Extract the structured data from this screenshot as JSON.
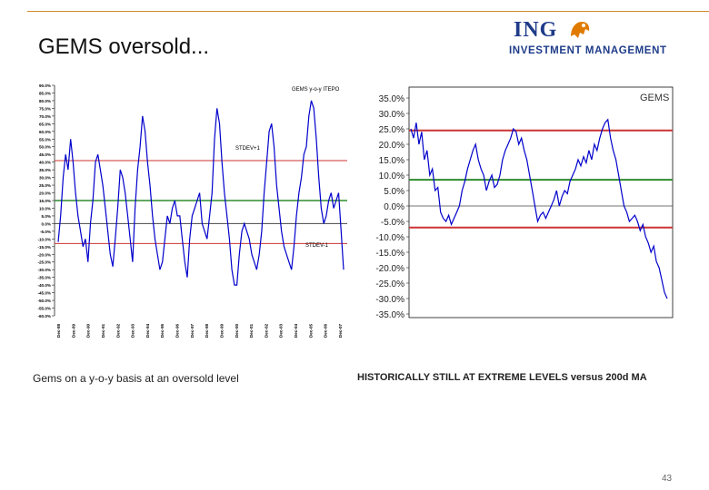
{
  "slide": {
    "title": "GEMS oversold...",
    "logo_main": "ING",
    "logo_sub": "INVESTMENT MANAGEMENT",
    "caption_left": "Gems on a y-o-y basis at an oversold level",
    "caption_right": "HISTORICALLY STILL AT EXTREME LEVELS versus 200d MA",
    "page_number": "43"
  },
  "colors": {
    "series": "#0000cc",
    "stdev": "#cc3333",
    "mean": "#2e8b2e",
    "zero": "#444444",
    "accent": "#d08a2a",
    "brand": "#1f3c8a"
  },
  "chart_data": [
    {
      "type": "line",
      "title": "GEMS y-o-y ITEPO",
      "yticks": [
        "90.0%",
        "85.0%",
        "80.0%",
        "75.0%",
        "70.0%",
        "65.0%",
        "60.0%",
        "55.0%",
        "50.0%",
        "45.0%",
        "40.0%",
        "35.0%",
        "30.0%",
        "25.0%",
        "20.0%",
        "15.0%",
        "10.0%",
        "5.0%",
        "0.0%",
        "-5.0%",
        "-10.0%",
        "-15.0%",
        "-20.0%",
        "-25.0%",
        "-30.0%",
        "-35.0%",
        "-40.0%",
        "-45.0%",
        "-50.0%",
        "-55.0%",
        "-60.0%"
      ],
      "xticks": [
        "Dec-88",
        "Dec-89",
        "Dec-90",
        "Dec-91",
        "Dec-92",
        "Dec-93",
        "Dec-94",
        "Dec-95",
        "Dec-96",
        "Dec-97",
        "Dec-98",
        "Dec-99",
        "Dec-00",
        "Dec-01",
        "Dec-02",
        "Dec-03",
        "Dec-04",
        "Dec-05",
        "Dec-06",
        "Dec-07"
      ],
      "ylim": [
        -60,
        90
      ],
      "lines": [
        {
          "name": "STDEV+1",
          "value": 41
        },
        {
          "name": "mean",
          "value": 15
        },
        {
          "name": "zero",
          "value": 0
        },
        {
          "name": "STDEV-1",
          "value": -13
        }
      ],
      "annotations": [
        "STDEV+1",
        "STDEV-1"
      ],
      "series": [
        {
          "values": [
            -12,
            5,
            30,
            45,
            35,
            55,
            40,
            20,
            5,
            -5,
            -15,
            -10,
            -25,
            0,
            15,
            40,
            45,
            35,
            25,
            10,
            -5,
            -20,
            -28,
            -10,
            10,
            35,
            30,
            20,
            5,
            -10,
            -25,
            10,
            35,
            50,
            70,
            60,
            40,
            25,
            5,
            -10,
            -20,
            -30,
            -25,
            -10,
            5,
            0,
            10,
            15,
            5,
            5,
            -10,
            -25,
            -35,
            -10,
            5,
            10,
            15,
            20,
            0,
            -5,
            -10,
            5,
            20,
            55,
            75,
            65,
            40,
            20,
            5,
            -10,
            -30,
            -40,
            -40,
            -20,
            -5,
            0,
            -5,
            -10,
            -20,
            -25,
            -30,
            -20,
            -5,
            20,
            40,
            60,
            65,
            50,
            25,
            10,
            -5,
            -15,
            -20,
            -25,
            -30,
            -15,
            5,
            20,
            30,
            45,
            50,
            70,
            80,
            75,
            55,
            30,
            10,
            0,
            5,
            15,
            20,
            10,
            15,
            20,
            -5,
            -30
          ]
        }
      ]
    },
    {
      "type": "line",
      "title": "GEMS",
      "yticks": [
        "35.0%",
        "30.0%",
        "25.0%",
        "20.0%",
        "15.0%",
        "10.0%",
        "5.0%",
        "0.0%",
        "-5.0%",
        "-10.0%",
        "-15.0%",
        "-20.0%",
        "-25.0%",
        "-30.0%",
        "-35.0%"
      ],
      "ylim": [
        -35,
        35
      ],
      "lines": [
        {
          "name": "upper",
          "value": 24.5
        },
        {
          "name": "mean",
          "value": 8.5
        },
        {
          "name": "zero",
          "value": 0
        },
        {
          "name": "lower",
          "value": -7
        }
      ],
      "series": [
        {
          "values": [
            25,
            22,
            27,
            20,
            24,
            15,
            18,
            10,
            12,
            5,
            6,
            -2,
            -4,
            -5,
            -3,
            -6,
            -4,
            -2,
            0,
            5,
            8,
            12,
            15,
            18,
            20,
            15,
            12,
            10,
            5,
            8,
            10,
            6,
            7,
            10,
            15,
            18,
            20,
            22,
            25,
            24,
            20,
            22,
            18,
            15,
            10,
            5,
            0,
            -5,
            -3,
            -2,
            -4,
            -2,
            0,
            2,
            5,
            0,
            3,
            5,
            4,
            8,
            10,
            12,
            15,
            13,
            16,
            14,
            18,
            15,
            20,
            18,
            22,
            25,
            27,
            28,
            22,
            18,
            15,
            10,
            5,
            0,
            -2,
            -5,
            -4,
            -3,
            -5,
            -8,
            -6,
            -10,
            -12,
            -15,
            -13,
            -18,
            -20,
            -24,
            -28,
            -30
          ]
        }
      ]
    }
  ]
}
